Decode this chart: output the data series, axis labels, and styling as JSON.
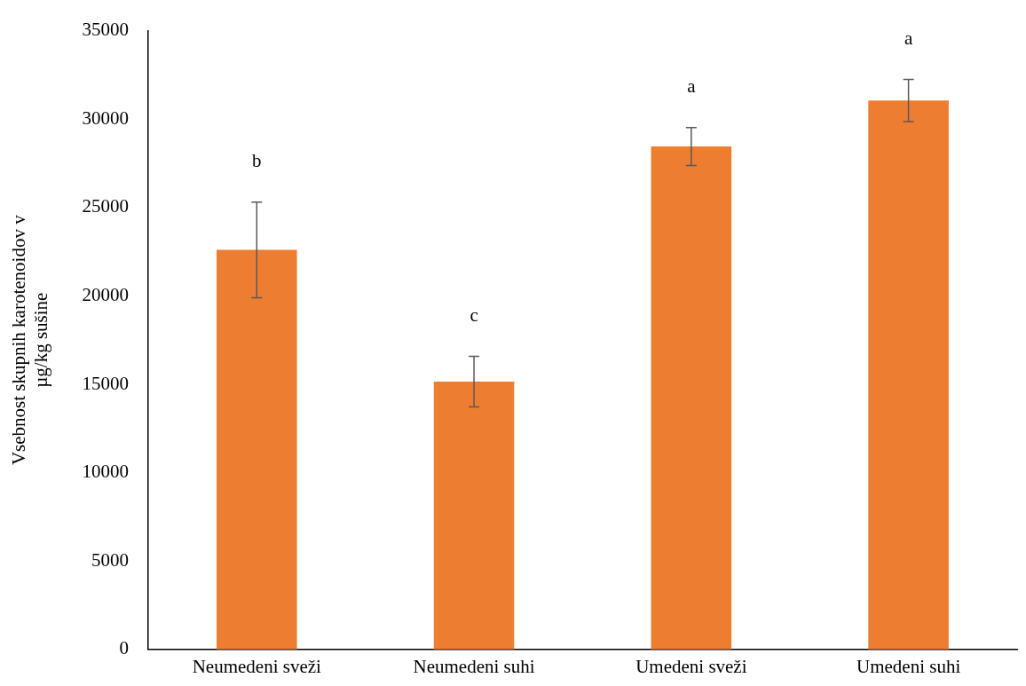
{
  "chart_data": {
    "type": "bar",
    "ylabel": "Vsebnost skupnih karotenoidov v µg/kg sušine",
    "categories": [
      "Neumedeni sveži",
      "Neumedeni suhi",
      "Umedeni sveži",
      "Umedeni suhi"
    ],
    "values": [
      22600,
      15150,
      28450,
      31050
    ],
    "errors": [
      2700,
      1430,
      1070,
      1190
    ],
    "color": "#ed7d31",
    "ylim": [
      0,
      35000
    ],
    "yticks": [
      0,
      5000,
      10000,
      15000,
      20000,
      25000,
      30000,
      35000
    ],
    "grid": false,
    "legend": false,
    "annotations": [
      "b",
      "c",
      "a",
      "a"
    ]
  }
}
